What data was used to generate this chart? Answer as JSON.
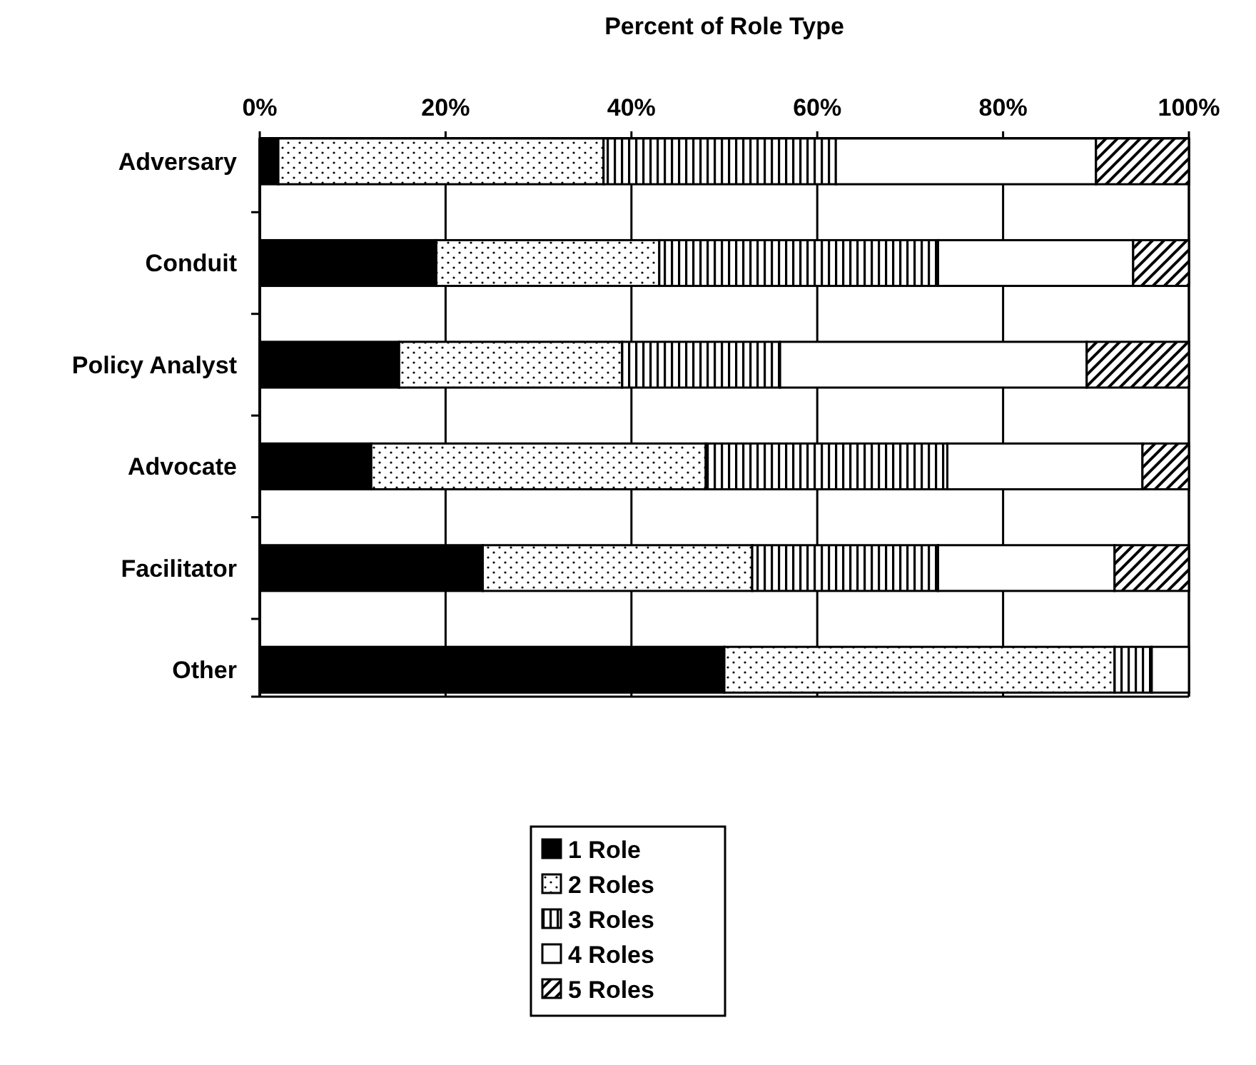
{
  "chart_data": {
    "type": "bar",
    "orientation": "horizontal",
    "stacked": true,
    "xlabel": "Percent of Role Type",
    "categories": [
      "Adversary",
      "Conduit",
      "Policy Analyst",
      "Advocate",
      "Facilitator",
      "Other"
    ],
    "series": [
      {
        "name": "1 Role",
        "color": "#000000",
        "values": [
          2,
          19,
          15,
          12,
          24,
          50
        ]
      },
      {
        "name": "2 Roles",
        "color": "#000000",
        "values": [
          35,
          24,
          24,
          36,
          29,
          42
        ]
      },
      {
        "name": "3 Roles",
        "color": "#000000",
        "values": [
          25,
          30,
          17,
          26,
          20,
          4
        ]
      },
      {
        "name": "4 Roles",
        "color": "#ffffff",
        "values": [
          28,
          21,
          33,
          21,
          19,
          4
        ]
      },
      {
        "name": "5 Roles",
        "color": "#000000",
        "values": [
          10,
          6,
          11,
          5,
          8,
          0
        ]
      }
    ],
    "xlim": [
      0,
      100
    ],
    "xticks": [
      {
        "value": 0,
        "label": "0%"
      },
      {
        "value": 20,
        "label": "20%"
      },
      {
        "value": 40,
        "label": "40%"
      },
      {
        "value": 60,
        "label": "60%"
      },
      {
        "value": 80,
        "label": "80%"
      },
      {
        "value": 100,
        "label": "100%"
      }
    ],
    "grid": "x",
    "legend": "bottom"
  }
}
